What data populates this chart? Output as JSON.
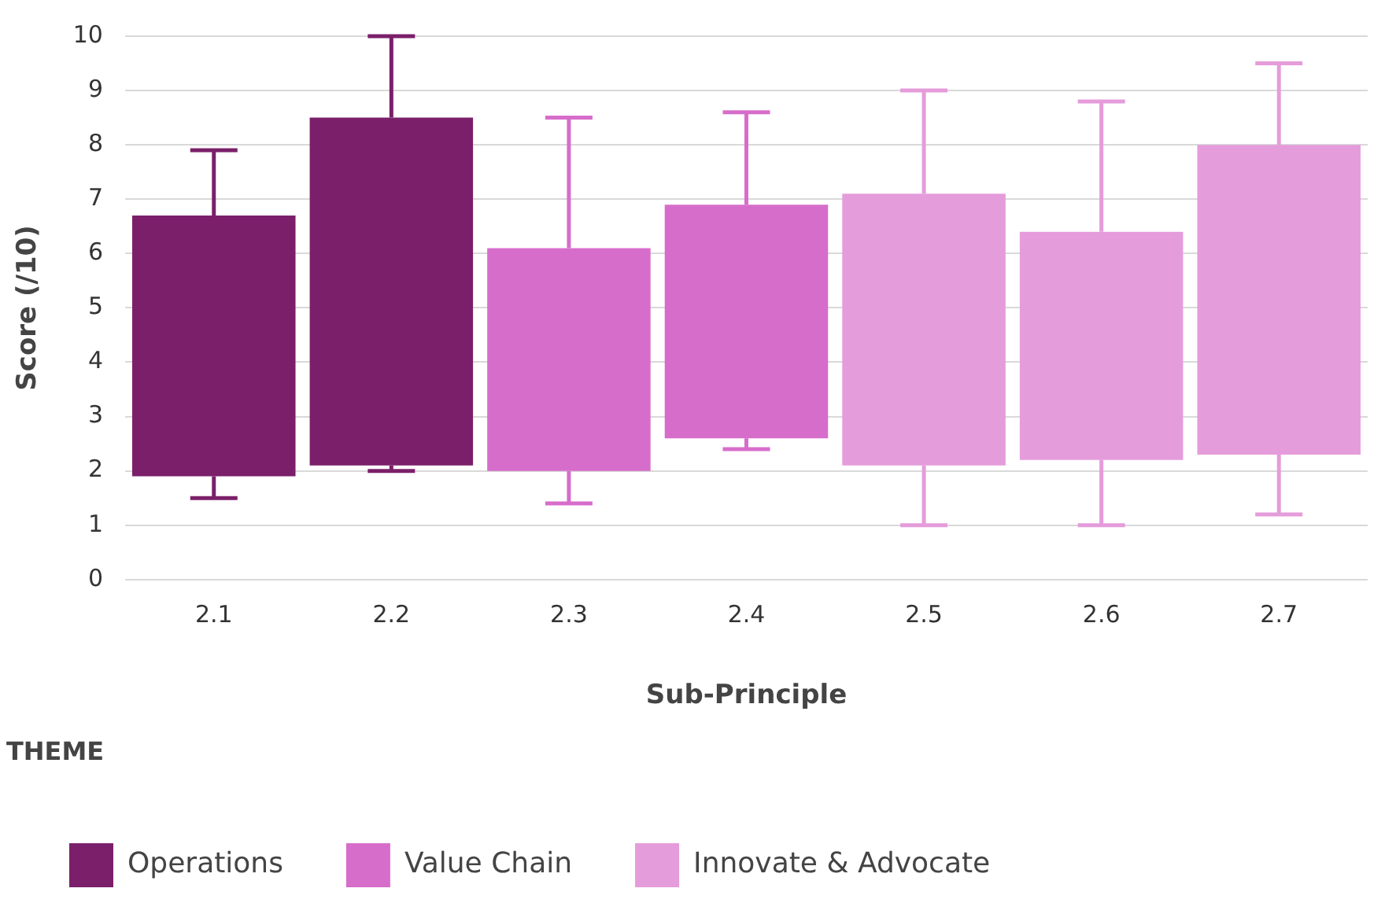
{
  "chart_data": {
    "type": "bar",
    "xlabel": "Sub-Principle",
    "ylabel": "Score (/10)",
    "legend_title": "THEME",
    "categories": [
      "2.1",
      "2.2",
      "2.3",
      "2.4",
      "2.5",
      "2.6",
      "2.7"
    ],
    "series": [
      {
        "name": "Operations",
        "color": "#7b1f6a",
        "base": [
          1.9,
          2.1,
          null,
          null,
          null,
          null,
          null
        ],
        "values": [
          4.8,
          6.4,
          null,
          null,
          null,
          null,
          null
        ],
        "errors": [
          [
            1.5,
            7.9
          ],
          [
            2.0,
            10
          ],
          null,
          null,
          null,
          null,
          null
        ]
      },
      {
        "name": "Value Chain",
        "color": "#d76dcb",
        "base": [
          null,
          null,
          2.0,
          2.6,
          null,
          null,
          null
        ],
        "values": [
          null,
          null,
          4.1,
          4.3,
          null,
          null,
          null
        ],
        "errors": [
          null,
          null,
          [
            1.4,
            8.5
          ],
          [
            2.4,
            8.6
          ],
          null,
          null,
          null
        ]
      },
      {
        "name": "Innovate & Advocate",
        "color": "#e59cdb",
        "base": [
          null,
          null,
          null,
          null,
          2.1,
          2.2,
          2.3
        ],
        "values": [
          null,
          null,
          null,
          null,
          5.0,
          4.2,
          5.7
        ],
        "errors": [
          null,
          null,
          null,
          null,
          [
            1.0,
            9.0
          ],
          [
            1.0,
            8.8
          ],
          [
            1.2,
            9.5
          ]
        ]
      }
    ],
    "ylim": [
      0,
      10
    ],
    "yticks": [
      0,
      1,
      2,
      3,
      4,
      5,
      6,
      7,
      8,
      9,
      10
    ],
    "grid": "y",
    "legend": "bottom left"
  }
}
